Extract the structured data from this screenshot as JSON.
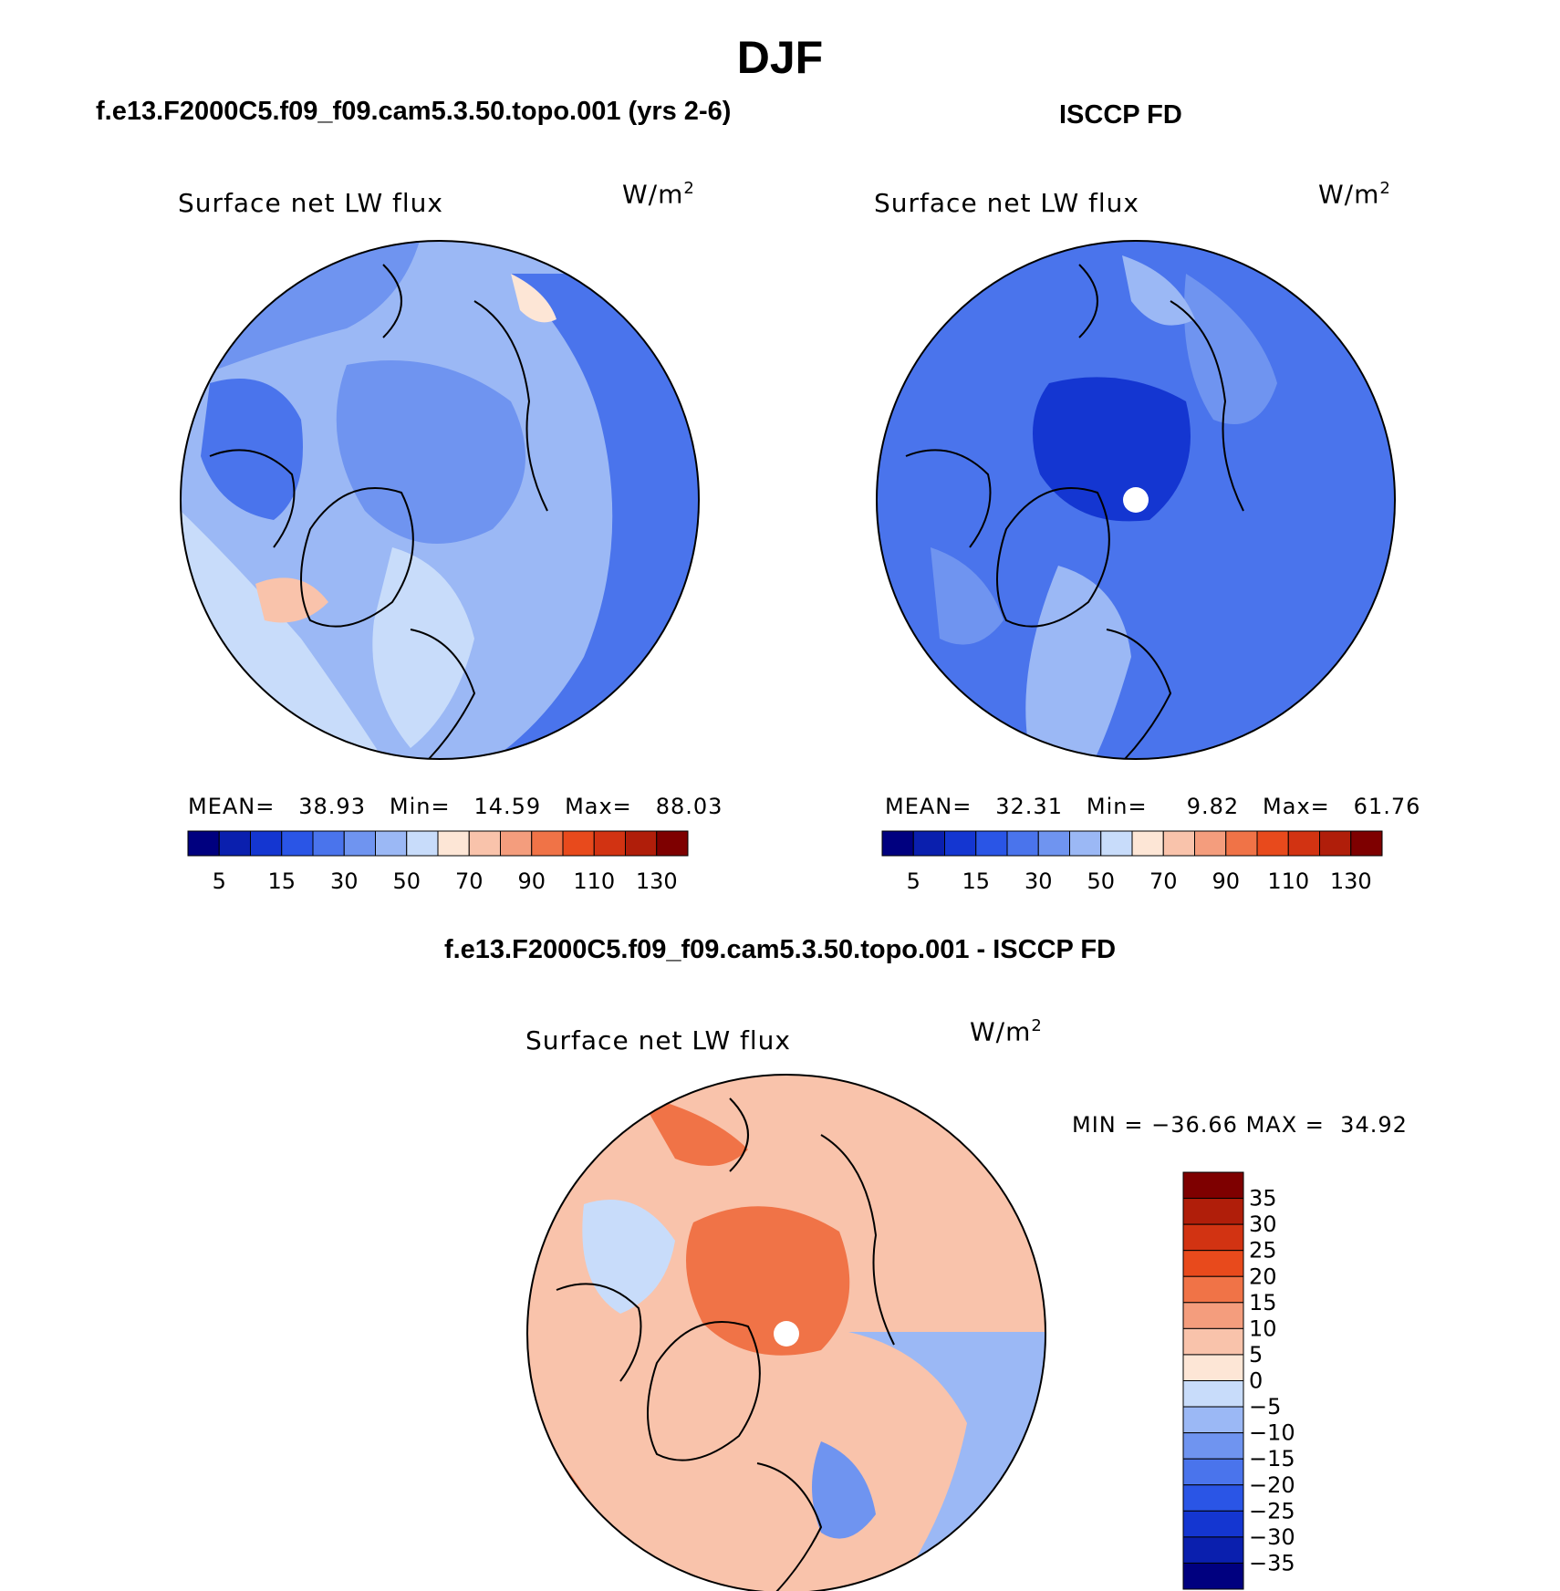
{
  "figure": {
    "season": "DJF",
    "panel_left_title": "f.e13.F2000C5.f09_f09.cam5.3.50.topo.001 (yrs 2-6)",
    "panel_right_title": "ISCCP FD",
    "panel_bottom_title": "f.e13.F2000C5.f09_f09.cam5.3.50.topo.001 - ISCCP FD"
  },
  "chart_data": [
    {
      "type": "heatmap",
      "projection": "north polar stereographic",
      "variable": "Surface net LW flux",
      "units": "W/m",
      "units_exponent": "2",
      "stats": {
        "mean_label": "MEAN=",
        "mean": "38.93",
        "min_label": "Min=",
        "min": "14.59",
        "max_label": "Max=",
        "max": "88.03"
      },
      "colorbar_levels": [
        5,
        10,
        15,
        20,
        30,
        40,
        50,
        60,
        70,
        80,
        90,
        100,
        110,
        120,
        130
      ],
      "colorbar_tick_labels": [
        "5",
        "15",
        "30",
        "50",
        "70",
        "90",
        "110",
        "130"
      ],
      "colors": [
        "#00007f",
        "#0a1fae",
        "#1436d1",
        "#2a55e6",
        "#4a74ec",
        "#6f94f0",
        "#9bb8f5",
        "#c8dcfa",
        "#fde6d6",
        "#f9c3ab",
        "#f49d7d",
        "#f07347",
        "#e84a1c",
        "#d23312",
        "#b01e0a",
        "#7e0000"
      ]
    },
    {
      "type": "heatmap",
      "projection": "north polar stereographic",
      "variable": "Surface net LW flux",
      "units": "W/m",
      "units_exponent": "2",
      "stats": {
        "mean_label": "MEAN=",
        "mean": "32.31",
        "min_label": "Min=",
        "min": "9.82",
        "max_label": "Max=",
        "max": "61.76"
      },
      "colorbar_levels": [
        5,
        10,
        15,
        20,
        30,
        40,
        50,
        60,
        70,
        80,
        90,
        100,
        110,
        120,
        130
      ],
      "colorbar_tick_labels": [
        "5",
        "15",
        "30",
        "50",
        "70",
        "90",
        "110",
        "130"
      ],
      "colors": [
        "#00007f",
        "#0a1fae",
        "#1436d1",
        "#2a55e6",
        "#4a74ec",
        "#6f94f0",
        "#9bb8f5",
        "#c8dcfa",
        "#fde6d6",
        "#f9c3ab",
        "#f49d7d",
        "#f07347",
        "#e84a1c",
        "#d23312",
        "#b01e0a",
        "#7e0000"
      ]
    },
    {
      "type": "heatmap",
      "projection": "north polar stereographic",
      "variable": "Surface net LW flux",
      "units": "W/m",
      "units_exponent": "2",
      "stats": {
        "min_label": "MIN =",
        "min": "−36.66",
        "max_label": "MAX =",
        "max": "34.92"
      },
      "colorbar_tick_labels": [
        "35",
        "30",
        "25",
        "20",
        "15",
        "10",
        "5",
        "0",
        "−5",
        "−10",
        "−15",
        "−20",
        "−25",
        "−30",
        "−35"
      ],
      "colors": [
        "#7e0000",
        "#b01e0a",
        "#d23312",
        "#e84a1c",
        "#f07347",
        "#f49d7d",
        "#f9c3ab",
        "#fde6d6",
        "#c8dcfa",
        "#9bb8f5",
        "#6f94f0",
        "#4a74ec",
        "#2a55e6",
        "#1436d1",
        "#0a1fae",
        "#00007f"
      ]
    }
  ]
}
